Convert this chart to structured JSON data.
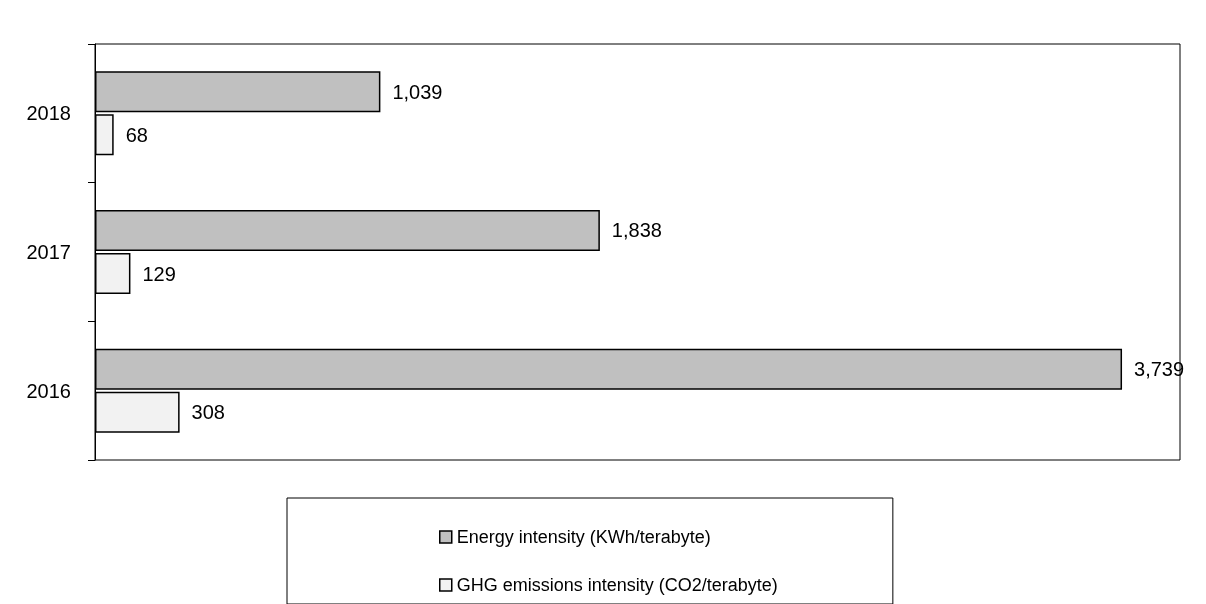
{
  "chart_data": {
    "type": "bar",
    "orientation": "horizontal",
    "categories": [
      "2018",
      "2017",
      "2016"
    ],
    "series": [
      {
        "name": "Energy intensity (KWh/terabyte)",
        "color": "#c0c0c0",
        "values": [
          1039,
          1838,
          3739
        ],
        "value_labels": [
          "1,039",
          "1,838",
          "3,739"
        ]
      },
      {
        "name": "GHG emissions intensity (CO2/terabyte)",
        "color": "#f2f2f2",
        "values": [
          68,
          129,
          308
        ],
        "value_labels": [
          "68",
          "129",
          "308"
        ]
      }
    ],
    "xlim": [
      0,
      3950
    ],
    "grid": false,
    "legend": "bottom",
    "tick_labels": "y"
  }
}
